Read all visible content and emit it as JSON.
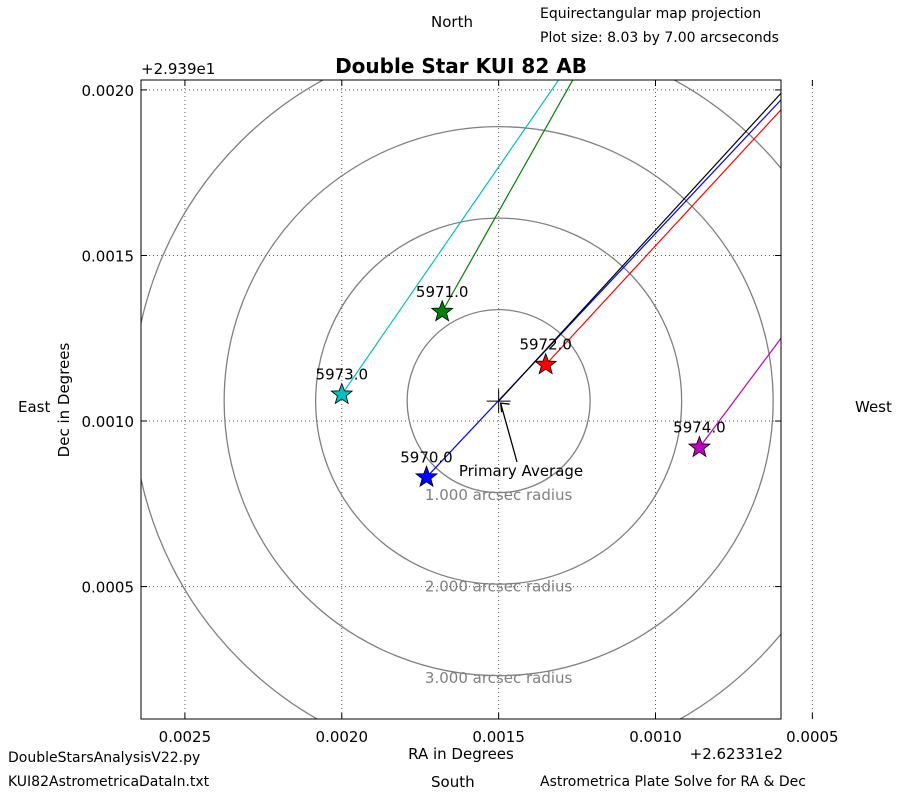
{
  "header": {
    "north": "North",
    "projection": "Equirectangular map projection",
    "plot_size": "Plot size: 8.03 by 7.00 arcseconds"
  },
  "directions": {
    "east": "East",
    "west": "West",
    "south": "South"
  },
  "footer": {
    "script": "DoubleStarsAnalysisV22.py",
    "data_file": "KUI82AstrometricaDataIn.txt",
    "method": "Astrometrica Plate Solve for RA & Dec"
  },
  "colors": {
    "ring": "#808080",
    "grid": "#555555",
    "blue": "#0000ff",
    "green": "#008000",
    "red": "#ff0000",
    "cyan": "#00bfbf",
    "magenta": "#bf00bf",
    "black": "#000000"
  },
  "chart_data": {
    "type": "scatter",
    "title": "Double Star KUI 82 AB",
    "xlabel": "RA in Degrees",
    "ylabel": "Dec in Degrees",
    "x_offset": "+2.62331e2",
    "y_offset": "+2.939e1",
    "x_inverted": true,
    "xlim": [
      0.00264,
      0.0006
    ],
    "ylim": [
      0.0001,
      0.00203
    ],
    "x_ticks": [
      0.0025,
      0.002,
      0.0015,
      0.001,
      0.0005
    ],
    "x_tick_labels": [
      "0.0025",
      "0.0020",
      "0.0015",
      "0.0010",
      "0.0005"
    ],
    "y_ticks": [
      0.0005,
      0.001,
      0.0015,
      0.002
    ],
    "y_tick_labels": [
      "0.0005",
      "0.0010",
      "0.0015",
      "0.0020"
    ],
    "grid": true,
    "center": {
      "x": 0.0015,
      "y": 0.00106,
      "label": "Primary Average"
    },
    "rings": [
      {
        "radius_arcsec": 1,
        "label": "1.000 arcsec radius"
      },
      {
        "radius_arcsec": 2,
        "label": "2.000 arcsec radius"
      },
      {
        "radius_arcsec": 3,
        "label": "3.000 arcsec radius"
      },
      {
        "radius_arcsec": 4,
        "label": ""
      }
    ],
    "points": [
      {
        "label": "5970.0",
        "x": 0.00173,
        "y": 0.00083,
        "color": "#0000ff"
      },
      {
        "label": "5971.0",
        "x": 0.00168,
        "y": 0.00133,
        "color": "#008000"
      },
      {
        "label": "5972.0",
        "x": 0.00135,
        "y": 0.00117,
        "color": "#ff0000"
      },
      {
        "label": "5973.0",
        "x": 0.002,
        "y": 0.00108,
        "color": "#00bfbf"
      },
      {
        "label": "5974.0",
        "x": 0.00086,
        "y": 0.00092,
        "color": "#bf00bf"
      }
    ],
    "motion_lines": [
      {
        "color": "#0000ff",
        "from": [
          0.00173,
          0.00083
        ],
        "to": [
          0.0006,
          0.00197
        ]
      },
      {
        "color": "#000000",
        "from": [
          0.0015,
          0.00106
        ],
        "to": [
          0.0006,
          0.00199
        ]
      },
      {
        "color": "#ff0000",
        "from": [
          0.00135,
          0.00117
        ],
        "to": [
          0.0006,
          0.00194
        ]
      },
      {
        "color": "#008000",
        "from": [
          0.00168,
          0.00133
        ],
        "to": [
          0.00124,
          0.00207
        ]
      },
      {
        "color": "#00bfbf",
        "from": [
          0.002,
          0.00108
        ],
        "to": [
          0.00128,
          0.00207
        ]
      },
      {
        "color": "#bf00bf",
        "from": [
          0.00086,
          0.00092
        ],
        "to": [
          0.0006,
          0.00125
        ]
      }
    ]
  }
}
